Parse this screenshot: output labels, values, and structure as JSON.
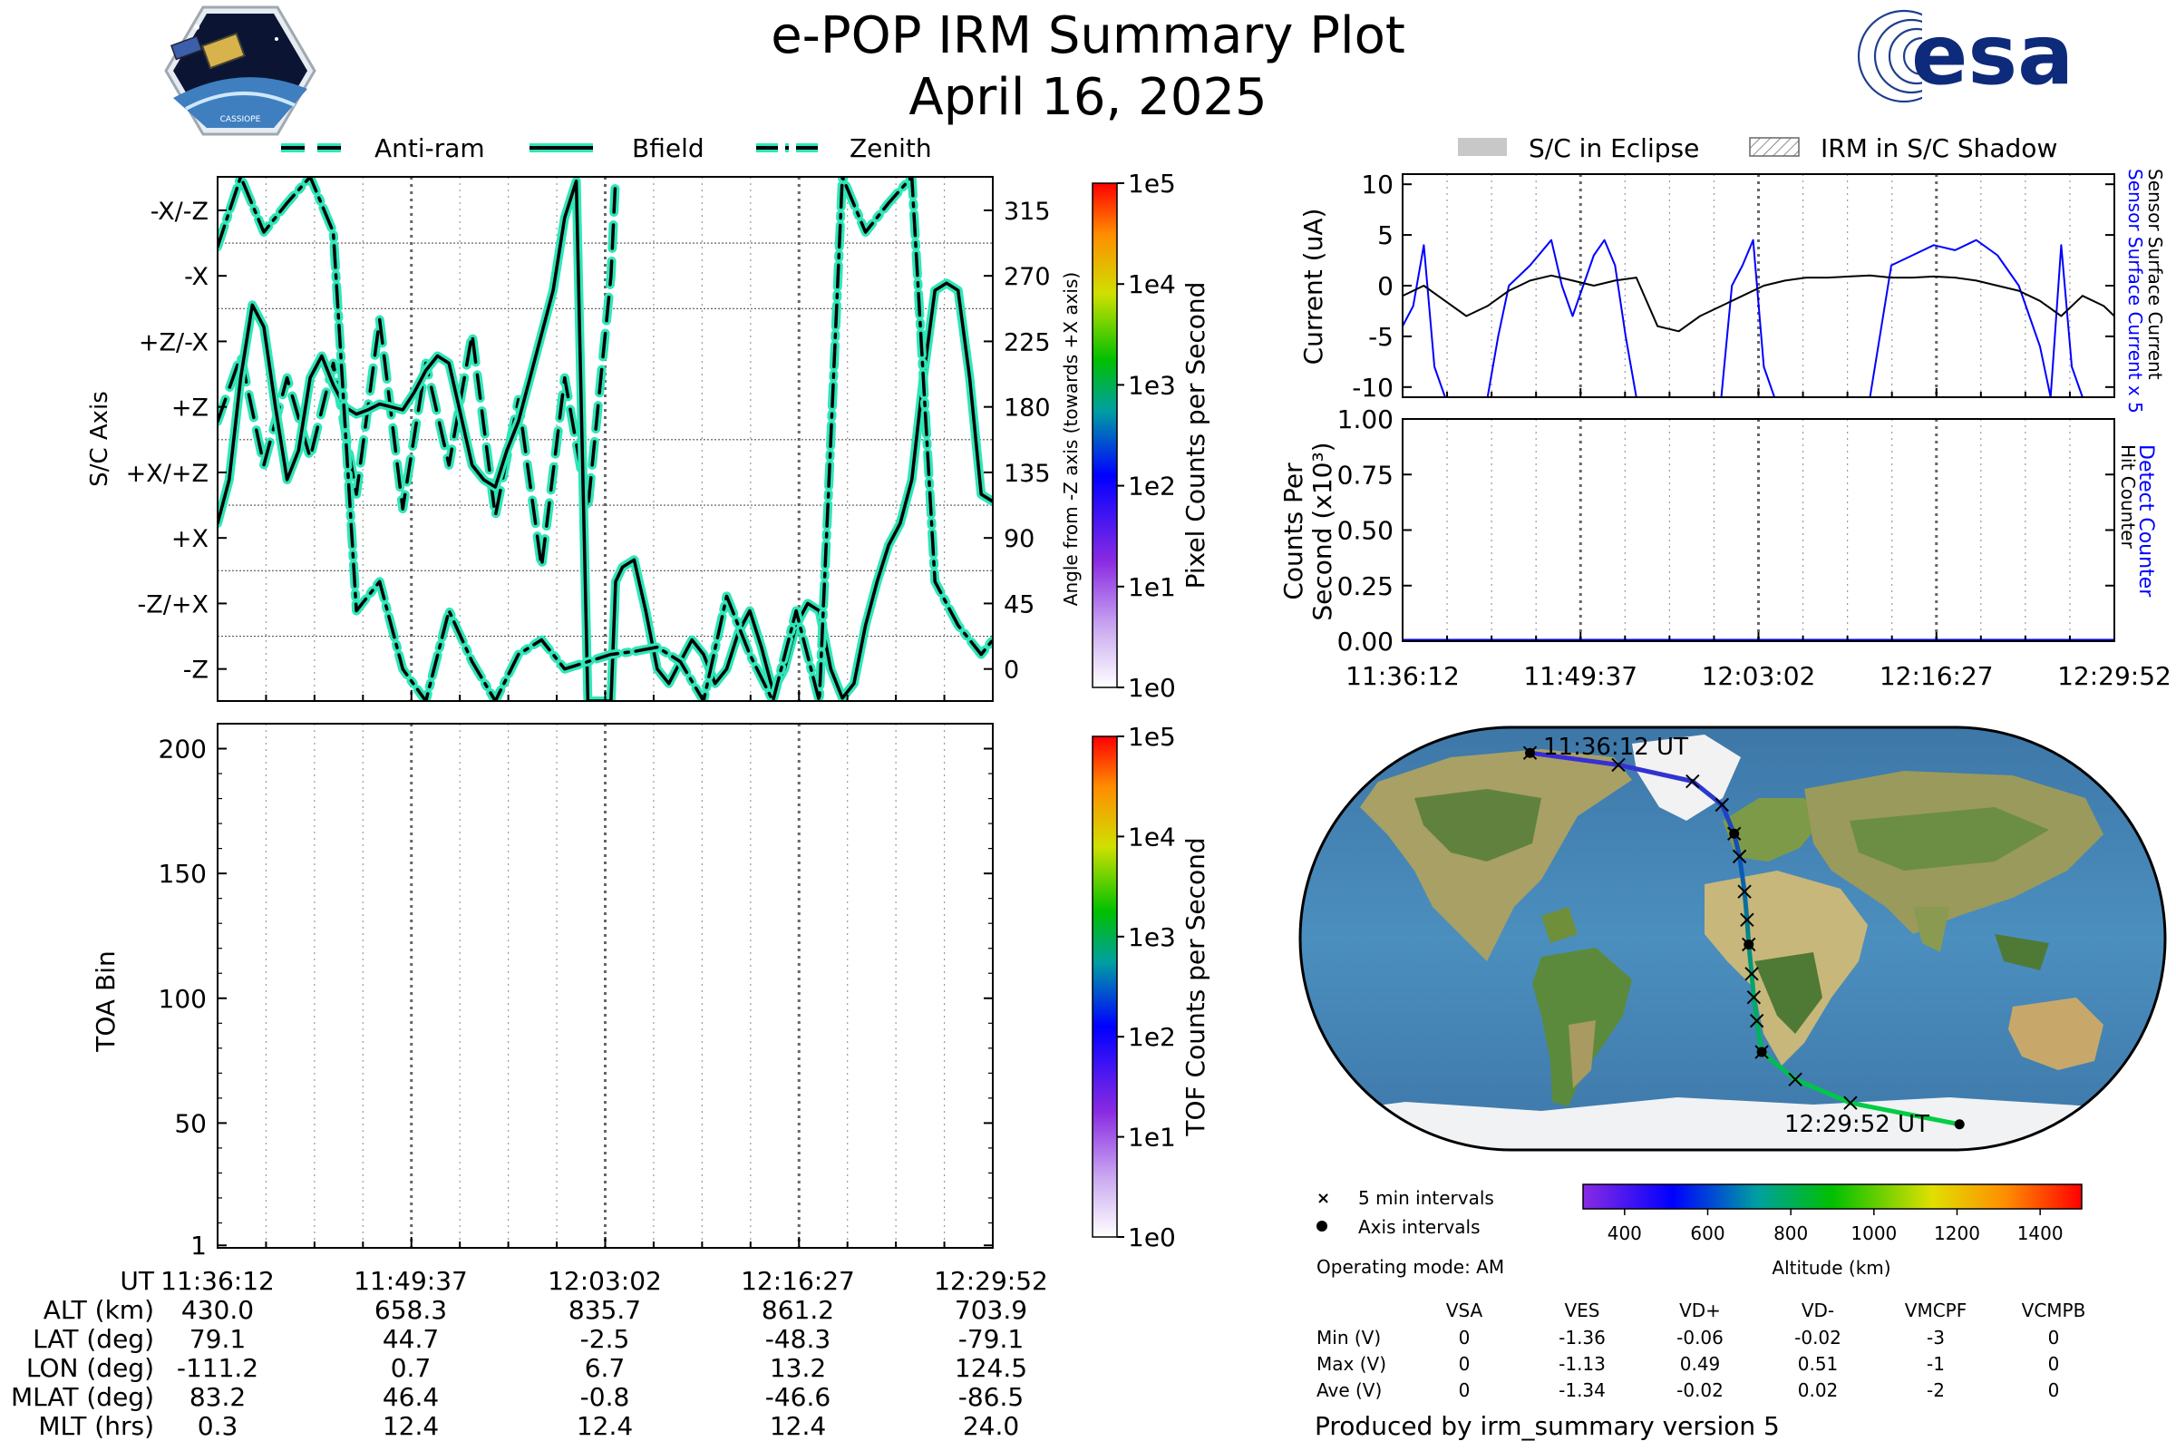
{
  "header": {
    "title": "e-POP IRM Summary Plot",
    "date": "April 16, 2025",
    "left_logo_text": "CASSIOPE",
    "right_logo_text": "esa"
  },
  "legend_top_left": [
    {
      "label": "Anti-ram",
      "style": "dashed"
    },
    {
      "label": "Bfield",
      "style": "solid"
    },
    {
      "label": "Zenith",
      "style": "dashdot"
    }
  ],
  "legend_top_right": [
    {
      "label": "S/C in Eclipse",
      "style": "grey-fill"
    },
    {
      "label": "IRM in S/C Shadow",
      "style": "hatch"
    }
  ],
  "colors": {
    "trace": "#2ee6b8",
    "trace_edge": "#000000",
    "sensor_surface_x5": "#0000ff",
    "sensor_surface": "#000000",
    "grid": "#888888"
  },
  "time_ticks": [
    "11:36:12",
    "11:49:37",
    "12:03:02",
    "12:16:27",
    "12:29:52"
  ],
  "chart_data": [
    {
      "id": "sc_axis",
      "type": "line",
      "ylabel": "S/C Axis",
      "ylabel_right": "Angle from -Z axis (towards +X axis)",
      "y_ticks_left": [
        "-X/-Z",
        "-X",
        "+Z/-X",
        "+Z",
        "+X/+Z",
        "+X",
        "-Z/+X",
        "-Z"
      ],
      "y_ticks_right": [
        315,
        270,
        225,
        180,
        135,
        90,
        45,
        0
      ],
      "ylim": [
        -22,
        338
      ],
      "x_minutes": [
        0,
        67
      ],
      "series": [
        {
          "name": "Anti-ram",
          "style": "dashed",
          "x": [
            0,
            2,
            4,
            6,
            8,
            10,
            12,
            14,
            16,
            18,
            20,
            22,
            24,
            26,
            28,
            30,
            32,
            34,
            34.4
          ],
          "y": [
            170,
            215,
            140,
            200,
            145,
            210,
            120,
            240,
            110,
            210,
            140,
            230,
            105,
            185,
            70,
            200,
            110,
            270,
            338
          ]
        },
        {
          "name": "Bfield",
          "style": "solid",
          "x": [
            0,
            1,
            2,
            3,
            4,
            5,
            6,
            7,
            8,
            9,
            10,
            11,
            12,
            13,
            14,
            15,
            16,
            17,
            18,
            19,
            20,
            21,
            22,
            23,
            24,
            25,
            26,
            27,
            28,
            29,
            30,
            31,
            32,
            33,
            34,
            34.4,
            35,
            36,
            37,
            38,
            39,
            40,
            41,
            42,
            43,
            44,
            45,
            46,
            47,
            48,
            49,
            50,
            51,
            52,
            53,
            54,
            55,
            56,
            57,
            58,
            59,
            60,
            61,
            62,
            63,
            64,
            65,
            66,
            67
          ],
          "y": [
            100,
            130,
            200,
            250,
            235,
            180,
            130,
            150,
            200,
            215,
            195,
            180,
            175,
            178,
            182,
            180,
            178,
            190,
            205,
            215,
            210,
            175,
            140,
            130,
            125,
            150,
            170,
            200,
            230,
            260,
            310,
            335,
            -22,
            -22,
            -22,
            60,
            70,
            75,
            40,
            0,
            -10,
            5,
            20,
            10,
            -10,
            0,
            25,
            40,
            15,
            -15,
            0,
            30,
            45,
            40,
            0,
            -20,
            -10,
            30,
            60,
            85,
            100,
            130,
            200,
            260,
            265,
            260,
            200,
            120,
            115
          ]
        },
        {
          "name": "Zenith",
          "style": "dashdot",
          "x": [
            0,
            2,
            4,
            6,
            8,
            10,
            12,
            14,
            16,
            18,
            20,
            22,
            24,
            26,
            28,
            30,
            32,
            34,
            36,
            38,
            40,
            42,
            44,
            46,
            48,
            50,
            52,
            54,
            56,
            58,
            60,
            62,
            64,
            66,
            67
          ],
          "y": [
            290,
            338,
            300,
            320,
            338,
            300,
            40,
            60,
            0,
            -22,
            40,
            5,
            -22,
            10,
            20,
            0,
            5,
            10,
            12,
            15,
            5,
            -22,
            50,
            10,
            -22,
            40,
            -22,
            338,
            300,
            320,
            338,
            60,
            30,
            10,
            20
          ]
        }
      ]
    },
    {
      "id": "toa",
      "type": "heatmap",
      "ylabel": "TOA Bin",
      "y_ticks": [
        200,
        150,
        100,
        50,
        1
      ],
      "ylim": [
        0,
        210
      ],
      "values": []
    },
    {
      "id": "current",
      "type": "line",
      "ylabel": "Current (uA)",
      "ylim": [
        -11,
        11
      ],
      "y_ticks": [
        10,
        5,
        0,
        -5,
        -10
      ],
      "right_labels": [
        "Sensor Surface Current x 5",
        "Sensor Surface Current"
      ],
      "series": [
        {
          "name": "Sensor Surface Current x 5",
          "color": "#0000ff",
          "x": [
            0,
            1,
            2,
            3,
            4,
            5,
            6,
            7,
            8,
            9,
            10,
            12,
            14,
            15,
            16,
            17,
            18,
            19,
            20,
            21,
            22,
            24,
            26,
            28,
            30,
            31,
            32,
            33,
            34,
            35,
            36,
            40,
            44,
            46,
            48,
            50,
            52,
            54,
            56,
            58,
            60,
            61,
            62,
            63,
            64,
            65,
            66,
            67
          ],
          "y": [
            -4,
            -2,
            4,
            -8,
            -11,
            -11,
            -11,
            -11,
            -11,
            -5,
            0,
            2,
            4.5,
            0,
            -3,
            0,
            3,
            4.5,
            2,
            -5,
            -11,
            -11,
            -11,
            -11,
            -11,
            0,
            2,
            4.5,
            -8,
            -11,
            -11,
            -11,
            -11,
            2,
            3,
            4,
            3.5,
            4.5,
            3,
            0,
            -6,
            -11,
            4,
            -8,
            -11,
            -11,
            -11,
            -11
          ]
        },
        {
          "name": "Sensor Surface Current",
          "color": "#000000",
          "x": [
            0,
            2,
            4,
            6,
            8,
            10,
            12,
            14,
            16,
            18,
            20,
            22,
            24,
            26,
            28,
            30,
            32,
            34,
            36,
            38,
            40,
            42,
            44,
            46,
            48,
            50,
            52,
            54,
            56,
            58,
            60,
            62,
            64,
            66,
            67
          ],
          "y": [
            -1,
            0,
            -1.5,
            -3,
            -2,
            -0.5,
            0.5,
            1,
            0.5,
            0,
            0.5,
            0.8,
            -4,
            -4.5,
            -3,
            -2,
            -1,
            0,
            0.5,
            0.8,
            0.8,
            0.9,
            1,
            0.8,
            0.8,
            0.9,
            0.8,
            0.5,
            0,
            -0.5,
            -1.5,
            -3,
            -1,
            -2,
            -3
          ]
        }
      ]
    },
    {
      "id": "counts",
      "type": "line",
      "ylabel": "Counts Per Second (x10³)",
      "ylim": [
        0,
        1.0
      ],
      "y_ticks": [
        "1.00",
        "0.75",
        "0.50",
        "0.25",
        "0.00"
      ],
      "right_labels": [
        "Detect Counter",
        "Hit Counter"
      ],
      "series": [
        {
          "name": "Detect Counter",
          "color": "#0000ff",
          "x": [
            0,
            67
          ],
          "y": [
            0,
            0
          ]
        },
        {
          "name": "Hit Counter",
          "color": "#000000",
          "x": [
            0,
            67
          ],
          "y": [
            0,
            0
          ]
        }
      ]
    }
  ],
  "colorbars": [
    {
      "label": "Pixel Counts per Second",
      "ticks": [
        "1e5",
        "1e4",
        "1e3",
        "1e2",
        "1e1",
        "1e0"
      ]
    },
    {
      "label": "TOF Counts per Second",
      "ticks": [
        "1e5",
        "1e4",
        "1e3",
        "1e2",
        "1e1",
        "1e0"
      ]
    }
  ],
  "map": {
    "start_label": "11:36:12 UT",
    "end_label": "12:29:52 UT",
    "legend": [
      "5 min intervals",
      "Axis intervals"
    ],
    "altitude_label": "Altitude (km)",
    "altitude_ticks": [
      "400",
      "600",
      "800",
      "1000",
      "1200",
      "1400"
    ],
    "track_lonlat": [
      [
        -111.2,
        79.1
      ],
      [
        -60,
        74
      ],
      [
        -20,
        67
      ],
      [
        -5,
        57
      ],
      [
        0.7,
        44.7
      ],
      [
        3,
        35
      ],
      [
        5,
        20
      ],
      [
        6,
        8
      ],
      [
        6.7,
        -2.5
      ],
      [
        8,
        -15
      ],
      [
        9,
        -25
      ],
      [
        10.5,
        -35
      ],
      [
        13.2,
        -48.3
      ],
      [
        30,
        -60
      ],
      [
        60,
        -70
      ],
      [
        124.5,
        -79.1
      ]
    ]
  },
  "operating_mode": "Operating mode: AM",
  "voltage_table": {
    "headers": [
      "",
      "VSA",
      "VES",
      "VD+",
      "VD-",
      "VMCPF",
      "VCMPB"
    ],
    "rows": [
      [
        "Min (V)",
        "0",
        "-1.36",
        "-0.06",
        "-0.02",
        "-3",
        "0"
      ],
      [
        "Max (V)",
        "0",
        "-1.13",
        "0.49",
        "0.51",
        "-1",
        "0"
      ],
      [
        "Ave (V)",
        "0",
        "-1.34",
        "-0.02",
        "0.02",
        "-2",
        "0"
      ]
    ]
  },
  "info_table": {
    "rows": [
      {
        "label": "UT",
        "values": [
          "11:36:12",
          "11:49:37",
          "12:03:02",
          "12:16:27",
          "12:29:52"
        ]
      },
      {
        "label": "ALT (km)",
        "values": [
          "430.0",
          "658.3",
          "835.7",
          "861.2",
          "703.9"
        ]
      },
      {
        "label": "LAT (deg)",
        "values": [
          "79.1",
          "44.7",
          "-2.5",
          "-48.3",
          "-79.1"
        ]
      },
      {
        "label": "LON (deg)",
        "values": [
          "-111.2",
          "0.7",
          "6.7",
          "13.2",
          "124.5"
        ]
      },
      {
        "label": "MLAT (deg)",
        "values": [
          "83.2",
          "46.4",
          "-0.8",
          "-46.6",
          "-86.5"
        ]
      },
      {
        "label": "MLT (hrs)",
        "values": [
          "0.3",
          "12.4",
          "12.4",
          "12.4",
          "24.0"
        ]
      }
    ]
  },
  "footer": "Produced by irm_summary version 5"
}
